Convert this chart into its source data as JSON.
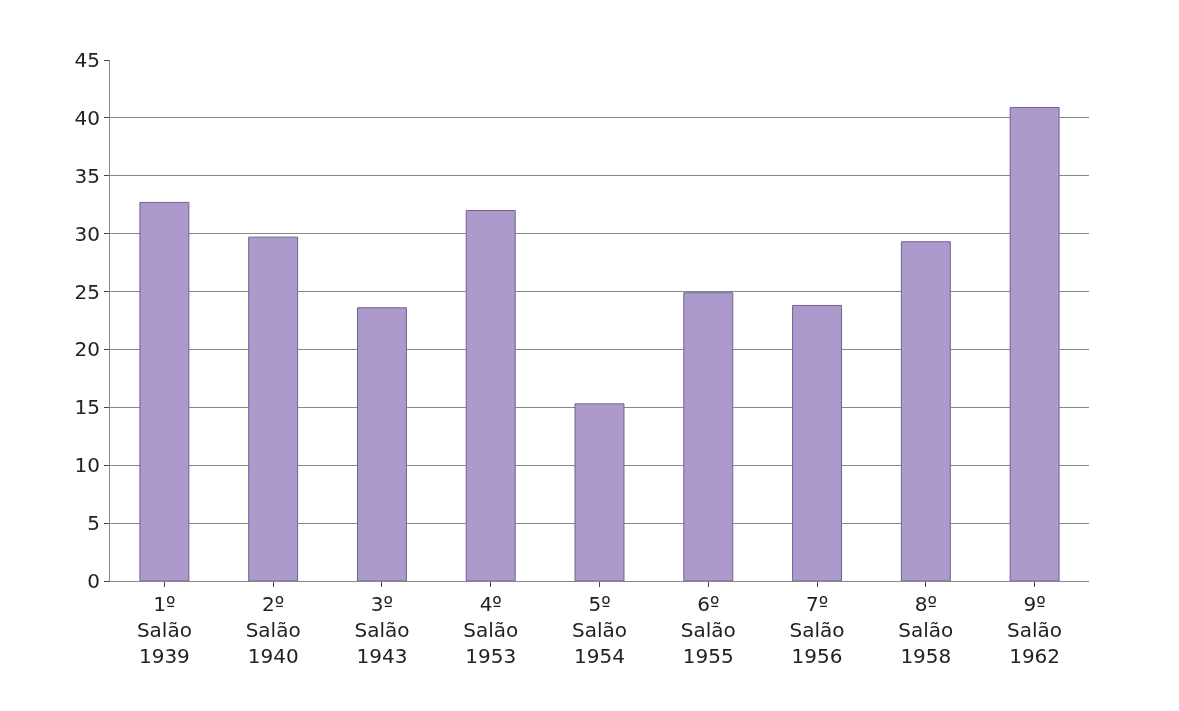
{
  "chart_data": {
    "type": "bar",
    "categories": [
      "1º\nSalão\n1939",
      "2º\nSalão\n1940",
      "3º\nSalão\n1943",
      "4º\nSalão\n1953",
      "5º\nSalão\n1954",
      "6º\nSalão\n1955",
      "7º\nSalão\n1956",
      "8º\nSalão\n1958",
      "9º\nSalão\n1962"
    ],
    "values": [
      32.7,
      29.7,
      23.6,
      32,
      15.3,
      24.9,
      23.8,
      29.3,
      40.9
    ],
    "color": "#ab9acb",
    "ylim": [
      0,
      45
    ],
    "yticks": [
      0,
      5,
      10,
      15,
      20,
      25,
      30,
      35,
      40,
      45
    ],
    "grid": true
  }
}
